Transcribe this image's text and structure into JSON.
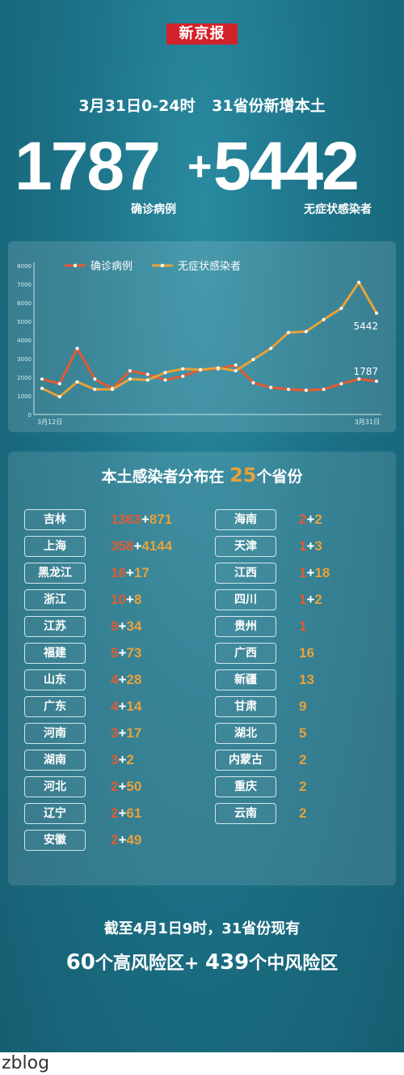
{
  "logo": "新京报",
  "headline": "3月31日0-24时 31省份新增本土",
  "confirmed_num": "1787",
  "plus": "+",
  "asymptomatic_num": "5442",
  "confirmed_label": "确诊病例",
  "asymptomatic_label": "无症状感染者",
  "colors": {
    "confirmed": "#e25b32",
    "asymptomatic": "#e8a13a"
  },
  "chart_data": {
    "type": "line",
    "x_start_label": "3月12日",
    "x_end_label": "3月31日",
    "y_ticks": [
      "8000",
      "7000",
      "6000",
      "5000",
      "4000",
      "3000",
      "2000",
      "1000",
      "0"
    ],
    "ylim": [
      0,
      8000
    ],
    "grid": false,
    "legend_position": "top-left",
    "series": [
      {
        "name": "确诊病例",
        "values": [
          1900,
          1650,
          3550,
          1900,
          1400,
          2350,
          2150,
          1850,
          2050,
          2400,
          2450,
          2650,
          1700,
          1450,
          1350,
          1300,
          1350,
          1650,
          1900,
          1787
        ],
        "end_label": "1787"
      },
      {
        "name": "无症状感染者",
        "values": [
          1400,
          950,
          1750,
          1350,
          1350,
          1900,
          1850,
          2250,
          2450,
          2400,
          2500,
          2350,
          2950,
          3550,
          4400,
          4450,
          5100,
          5700,
          7100,
          5442
        ],
        "end_label": "5442"
      }
    ]
  },
  "list_title_pre": "本土感染者分布在",
  "list_title_num": "25",
  "list_title_post": "个省份",
  "provinces_left": [
    {
      "name": "吉林",
      "confirmed": "1363",
      "asym": "871"
    },
    {
      "name": "上海",
      "confirmed": "358",
      "asym": "4144"
    },
    {
      "name": "黑龙江",
      "confirmed": "16",
      "asym": "17"
    },
    {
      "name": "浙江",
      "confirmed": "10",
      "asym": "8"
    },
    {
      "name": "江苏",
      "confirmed": "9",
      "asym": "34"
    },
    {
      "name": "福建",
      "confirmed": "5",
      "asym": "73"
    },
    {
      "name": "山东",
      "confirmed": "4",
      "asym": "28"
    },
    {
      "name": "广东",
      "confirmed": "4",
      "asym": "14"
    },
    {
      "name": "河南",
      "confirmed": "3",
      "asym": "17"
    },
    {
      "name": "湖南",
      "confirmed": "3",
      "asym": "2"
    },
    {
      "name": "河北",
      "confirmed": "2",
      "asym": "50"
    },
    {
      "name": "辽宁",
      "confirmed": "2",
      "asym": "61"
    },
    {
      "name": "安徽",
      "confirmed": "2",
      "asym": "49"
    }
  ],
  "provinces_right": [
    {
      "name": "海南",
      "confirmed": "2",
      "asym": "2"
    },
    {
      "name": "天津",
      "confirmed": "1",
      "asym": "3"
    },
    {
      "name": "江西",
      "confirmed": "1",
      "asym": "18"
    },
    {
      "name": "四川",
      "confirmed": "1",
      "asym": "2"
    },
    {
      "name": "贵州",
      "confirmed": "1",
      "asym": ""
    },
    {
      "name": "广西",
      "confirmed": "",
      "asym": "16"
    },
    {
      "name": "新疆",
      "confirmed": "",
      "asym": "13"
    },
    {
      "name": "甘肃",
      "confirmed": "",
      "asym": "9"
    },
    {
      "name": "湖北",
      "confirmed": "",
      "asym": "5"
    },
    {
      "name": "内蒙古",
      "confirmed": "",
      "asym": "2"
    },
    {
      "name": "重庆",
      "confirmed": "",
      "asym": "2"
    },
    {
      "name": "云南",
      "confirmed": "",
      "asym": "2"
    }
  ],
  "bottom_line1": "截至4月1日9时，31省份现有",
  "bottom_high_num": "60",
  "bottom_high_text": "个高风险区",
  "bottom_plus": "+",
  "bottom_mid_num": "439",
  "bottom_mid_text": "个中风险区",
  "watermark": "zblog"
}
